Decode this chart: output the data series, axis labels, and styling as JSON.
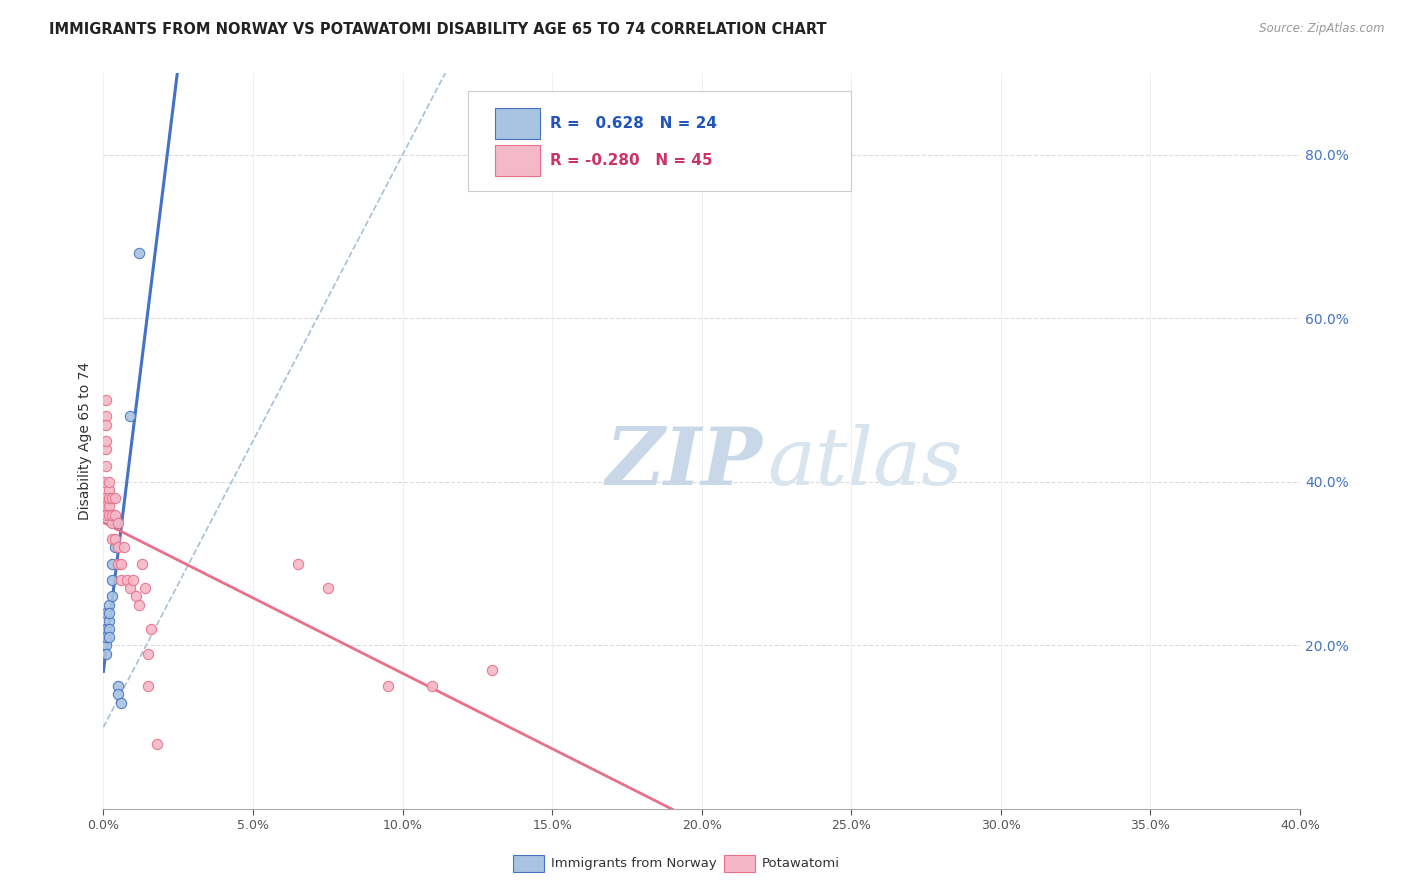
{
  "title": "IMMIGRANTS FROM NORWAY VS POTAWATOMI DISABILITY AGE 65 TO 74 CORRELATION CHART",
  "source": "Source: ZipAtlas.com",
  "ylabel": "Disability Age 65 to 74",
  "legend1_label": "Immigrants from Norway",
  "legend2_label": "Potawatomi",
  "r1": "0.628",
  "n1": "24",
  "r2": "-0.280",
  "n2": "45",
  "norway_x": [
    0.0,
    0.0,
    0.001,
    0.001,
    0.001,
    0.001,
    0.001,
    0.001,
    0.001,
    0.002,
    0.002,
    0.002,
    0.002,
    0.002,
    0.003,
    0.003,
    0.003,
    0.004,
    0.004,
    0.005,
    0.005,
    0.006,
    0.009,
    0.012
  ],
  "norway_y": [
    0.2,
    0.21,
    0.21,
    0.22,
    0.24,
    0.22,
    0.2,
    0.19,
    0.21,
    0.23,
    0.22,
    0.25,
    0.24,
    0.21,
    0.28,
    0.3,
    0.26,
    0.32,
    0.35,
    0.15,
    0.14,
    0.13,
    0.48,
    0.68
  ],
  "potawatomi_x": [
    0.0,
    0.0,
    0.0,
    0.001,
    0.001,
    0.001,
    0.001,
    0.001,
    0.001,
    0.001,
    0.001,
    0.002,
    0.002,
    0.002,
    0.002,
    0.002,
    0.003,
    0.003,
    0.003,
    0.003,
    0.004,
    0.004,
    0.004,
    0.005,
    0.005,
    0.005,
    0.006,
    0.006,
    0.007,
    0.008,
    0.009,
    0.01,
    0.011,
    0.012,
    0.013,
    0.014,
    0.015,
    0.015,
    0.016,
    0.018,
    0.065,
    0.075,
    0.095,
    0.11,
    0.13
  ],
  "potawatomi_y": [
    0.37,
    0.4,
    0.38,
    0.37,
    0.36,
    0.42,
    0.44,
    0.48,
    0.5,
    0.47,
    0.45,
    0.37,
    0.39,
    0.4,
    0.36,
    0.38,
    0.38,
    0.35,
    0.33,
    0.36,
    0.36,
    0.33,
    0.38,
    0.35,
    0.32,
    0.3,
    0.3,
    0.28,
    0.32,
    0.28,
    0.27,
    0.28,
    0.26,
    0.25,
    0.3,
    0.27,
    0.19,
    0.15,
    0.22,
    0.08,
    0.3,
    0.27,
    0.15,
    0.15,
    0.17
  ],
  "color_norway": "#a8c4e0",
  "color_norway_line": "#4472c4",
  "color_potawatomi": "#f4b8c8",
  "color_potawatomi_line": "#e8708a",
  "color_dashed": "#a0b8d0",
  "watermark_zip": "ZIP",
  "watermark_atlas": "atlas",
  "xmin": 0.0,
  "xmax": 0.4,
  "ymin": 0.0,
  "ymax": 0.9,
  "yticks": [
    0.2,
    0.4,
    0.6,
    0.8
  ],
  "xticks": [
    0.0,
    0.05,
    0.1,
    0.15,
    0.2,
    0.25,
    0.3,
    0.35,
    0.4
  ]
}
